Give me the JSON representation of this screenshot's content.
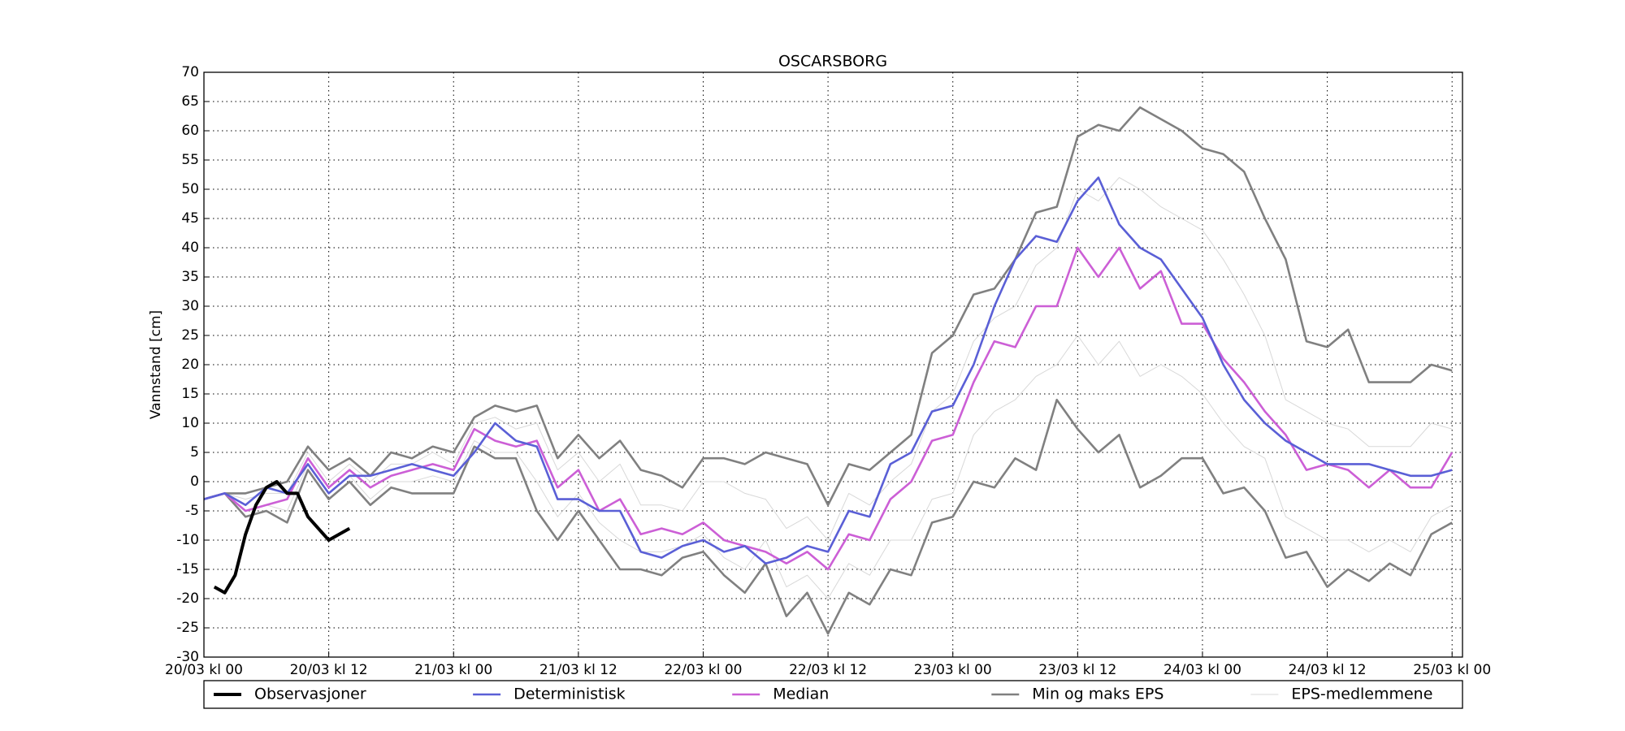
{
  "chart_data": {
    "type": "line",
    "title": "OSCARSBORG",
    "y_label": "Vannstand [cm]",
    "x": [
      0,
      2,
      4,
      6,
      8,
      10,
      12,
      14,
      16,
      18,
      20,
      22,
      24,
      26,
      28,
      30,
      32,
      34,
      36,
      38,
      40,
      42,
      44,
      46,
      48,
      50,
      52,
      54,
      56,
      58,
      60,
      62,
      64,
      66,
      68,
      70,
      72,
      74,
      76,
      78,
      80,
      82,
      84,
      86,
      88,
      90,
      92,
      94,
      96,
      98,
      100,
      102,
      104,
      106,
      108,
      110,
      112,
      114,
      116,
      118,
      120
    ],
    "xlim": [
      0,
      121
    ],
    "xticks": [
      {
        "value": 0,
        "label": "20/03 kl 00"
      },
      {
        "value": 12,
        "label": "20/03 kl 12"
      },
      {
        "value": 24,
        "label": "21/03 kl 00"
      },
      {
        "value": 36,
        "label": "21/03 kl 12"
      },
      {
        "value": 48,
        "label": "22/03 kl 00"
      },
      {
        "value": 60,
        "label": "22/03 kl 12"
      },
      {
        "value": 72,
        "label": "23/03 kl 00"
      },
      {
        "value": 84,
        "label": "23/03 kl 12"
      },
      {
        "value": 96,
        "label": "24/03 kl 00"
      },
      {
        "value": 108,
        "label": "24/03 kl 12"
      },
      {
        "value": 120,
        "label": "25/03 kl 00"
      }
    ],
    "ylim": [
      -30,
      70
    ],
    "yticks": [
      -30,
      -25,
      -20,
      -15,
      -10,
      -5,
      0,
      5,
      10,
      15,
      20,
      25,
      30,
      35,
      40,
      45,
      50,
      55,
      60,
      65,
      70
    ],
    "grid": true,
    "legend": "bottom",
    "series": [
      {
        "name": "Observasjoner",
        "color": "#000000",
        "x": [
          1,
          2,
          3,
          4,
          5,
          6,
          7,
          8,
          9,
          10,
          12,
          14
        ],
        "values": [
          -18,
          -19,
          -16,
          -9,
          -4,
          -1,
          0,
          -2,
          -2,
          -6,
          -10,
          -8
        ]
      },
      {
        "name": "Deterministisk",
        "color": "#5a5fd6",
        "values": [
          -3,
          -2,
          -4,
          -1,
          -2,
          3,
          -2,
          1,
          1,
          2,
          3,
          2,
          1,
          5,
          10,
          7,
          6,
          -3,
          -3,
          -5,
          -5,
          -12,
          -13,
          -11,
          -10,
          -12,
          -11,
          -14,
          -13,
          -11,
          -12,
          -5,
          -6,
          3,
          5,
          12,
          13,
          20,
          30,
          38,
          42,
          41,
          48,
          52,
          44,
          40,
          38,
          33,
          28,
          20,
          14,
          10,
          7,
          5,
          3,
          3,
          3,
          2,
          1,
          1,
          2
        ]
      },
      {
        "name": "Median",
        "color": "#cc5fd6",
        "values": [
          -3,
          -2,
          -5,
          -4,
          -3,
          4,
          -1,
          2,
          -1,
          1,
          2,
          3,
          2,
          9,
          7,
          6,
          7,
          -1,
          2,
          -5,
          -3,
          -9,
          -8,
          -9,
          -7,
          -10,
          -11,
          -12,
          -14,
          -12,
          -15,
          -9,
          -10,
          -3,
          0,
          7,
          8,
          17,
          24,
          23,
          30,
          30,
          40,
          35,
          40,
          33,
          36,
          27,
          27,
          21,
          17,
          12,
          8,
          2,
          3,
          2,
          -1,
          2,
          -1,
          -1,
          5
        ]
      },
      {
        "name": "Min og maks EPS",
        "color": "#808080",
        "values": [
          [
            -3,
            -2,
            -6,
            -5,
            -7,
            2,
            -3,
            0,
            -4,
            -1,
            -2,
            -2,
            -2,
            6,
            4,
            4,
            -5,
            -10,
            -5,
            -10,
            -15,
            -15,
            -16,
            -13,
            -12,
            -16,
            -19,
            -14,
            -23,
            -19,
            -26,
            -19,
            -21,
            -15,
            -16,
            -7,
            -6,
            0,
            -1,
            4,
            2,
            14,
            9,
            5,
            8,
            -1,
            1,
            4,
            4,
            -2,
            -1,
            -5,
            -13,
            -12,
            -18,
            -15,
            -17,
            -14,
            -16,
            -9,
            -7
          ],
          [
            -3,
            -2,
            -2,
            -1,
            0,
            6,
            2,
            4,
            1,
            5,
            4,
            6,
            5,
            11,
            13,
            12,
            13,
            4,
            8,
            4,
            7,
            2,
            1,
            -1,
            4,
            4,
            3,
            5,
            4,
            3,
            -4,
            3,
            2,
            5,
            8,
            22,
            25,
            32,
            33,
            38,
            46,
            47,
            59,
            61,
            60,
            64,
            62,
            60,
            57,
            56,
            53,
            45,
            38,
            24,
            23,
            26,
            17,
            17,
            17,
            20,
            19
          ]
        ]
      },
      {
        "name": "EPS-medlemmene",
        "color": "#d8d8d8",
        "values": [
          [
            -3,
            -2,
            -3,
            -2,
            -2,
            5,
            0,
            3,
            0,
            3,
            3,
            5,
            3,
            10,
            11,
            9,
            10,
            2,
            5,
            0,
            3,
            -4,
            -4,
            -5,
            0,
            0,
            -2,
            -3,
            -8,
            -6,
            -10,
            -2,
            -4,
            0,
            3,
            12,
            15,
            24,
            28,
            30,
            37,
            40,
            50,
            48,
            52,
            50,
            47,
            45,
            43,
            38,
            32,
            25,
            14,
            12,
            10,
            9,
            6,
            6,
            6,
            10,
            9
          ],
          [
            -3,
            -2,
            -5,
            -4,
            -5,
            3,
            -2,
            1,
            -3,
            0,
            0,
            1,
            0,
            7,
            5,
            5,
            0,
            -6,
            -2,
            -7,
            -10,
            -12,
            -12,
            -11,
            -9,
            -13,
            -15,
            -10,
            -18,
            -16,
            -20,
            -14,
            -16,
            -10,
            -10,
            -3,
            -2,
            8,
            12,
            14,
            18,
            20,
            25,
            20,
            24,
            18,
            20,
            18,
            15,
            10,
            6,
            4,
            -6,
            -8,
            -10,
            -10,
            -12,
            -10,
            -12,
            -6,
            -4
          ]
        ]
      }
    ]
  }
}
